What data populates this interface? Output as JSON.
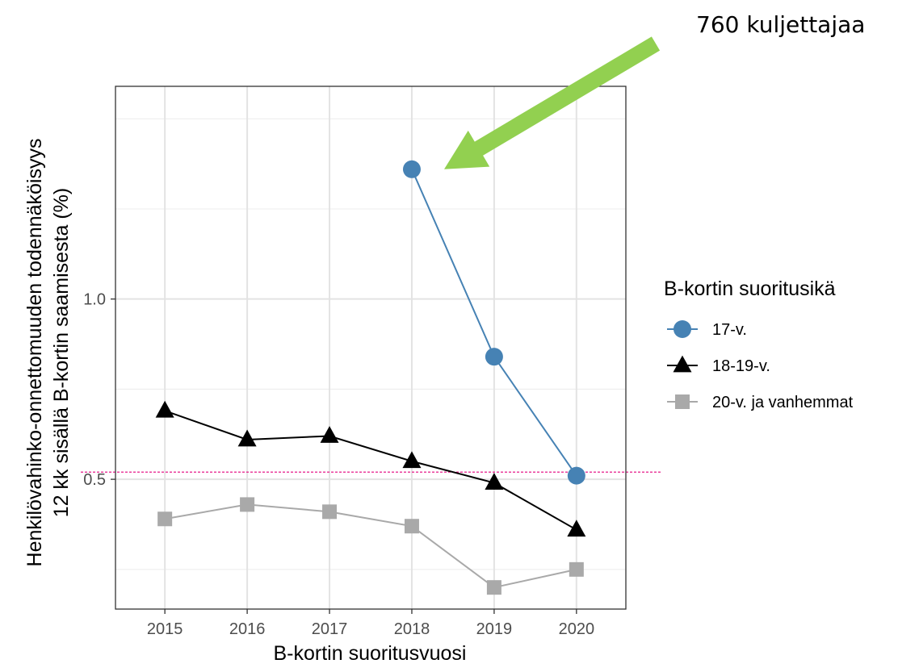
{
  "chart_data": {
    "type": "line",
    "xlabel": "B-kortin suoritusvuosi",
    "ylabel_lines": [
      "Henkilövahinko-onnettomuuden todennäköisyys",
      "12 kk sisällä B-kortin saamisesta (%)"
    ],
    "x": [
      2015,
      2016,
      2017,
      2018,
      2019,
      2020
    ],
    "x_ticks": [
      "2015",
      "2016",
      "2017",
      "2018",
      "2019",
      "2020"
    ],
    "y_ticks": [
      {
        "value": 0.5,
        "label": "0.5"
      },
      {
        "value": 1.0,
        "label": "1.0"
      }
    ],
    "ylim": [
      0.14,
      1.59
    ],
    "xlim": [
      2014.4,
      2020.6
    ],
    "grid": true,
    "legend": {
      "title": "B-kortin suoritusikä",
      "position": "right"
    },
    "series": [
      {
        "name": "17-v.",
        "color": "#4682b4",
        "marker": "circle",
        "x": [
          2018,
          2019,
          2020
        ],
        "values": [
          1.36,
          0.84,
          0.51
        ]
      },
      {
        "name": "18-19-v.",
        "color": "#000000",
        "marker": "triangle",
        "x": [
          2015,
          2016,
          2017,
          2018,
          2019,
          2020
        ],
        "values": [
          0.69,
          0.61,
          0.62,
          0.55,
          0.49,
          0.36
        ]
      },
      {
        "name": "20-v. ja vanhemmat",
        "color": "#a9a9a9",
        "marker": "square",
        "x": [
          2015,
          2016,
          2017,
          2018,
          2019,
          2020
        ],
        "values": [
          0.39,
          0.43,
          0.41,
          0.37,
          0.2,
          0.25
        ]
      }
    ],
    "reference_line": {
      "value": 0.52,
      "color": "#e4007c",
      "style": "dashed"
    },
    "annotation": {
      "text": "760 kuljettajaa",
      "arrow_color": "#92d050",
      "points_to": {
        "x": 2018,
        "series": "17-v."
      }
    }
  }
}
